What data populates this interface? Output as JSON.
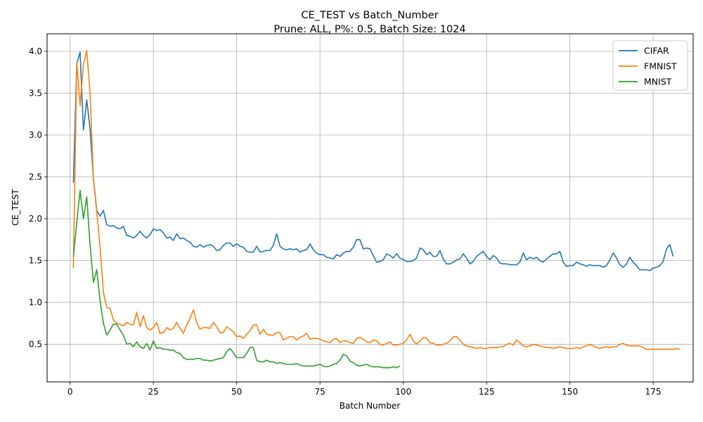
{
  "chart_data": {
    "type": "line",
    "title": "CE_TEST vs Batch_Number",
    "subtitle": "Prune: ALL, P%: 0.5, Batch Size: 1024",
    "xlabel": "Batch Number",
    "ylabel": "CE_TEST",
    "xlim": [
      -6.9,
      187
    ],
    "ylim": [
      0.05,
      4.21
    ],
    "xticks": [
      0,
      25,
      50,
      75,
      100,
      125,
      150,
      175
    ],
    "yticks": [
      0.5,
      1.0,
      1.5,
      2.0,
      2.5,
      3.0,
      3.5,
      4.0
    ],
    "ytick_labels": [
      "0.5",
      "1.0",
      "1.5",
      "2.0",
      "2.5",
      "3.0",
      "3.5",
      "4.0"
    ],
    "grid": true,
    "legend_position": "top-right",
    "series": [
      {
        "name": "CIFAR",
        "color": "#1f77b4",
        "values": [
          2.43,
          3.85,
          3.99,
          3.06,
          3.42,
          3.07,
          2.48,
          2.1,
          2.03,
          2.1,
          1.93,
          1.91,
          1.92,
          1.89,
          1.88,
          1.91,
          1.8,
          1.79,
          1.77,
          1.8,
          1.85,
          1.8,
          1.77,
          1.81,
          1.88,
          1.86,
          1.87,
          1.83,
          1.77,
          1.78,
          1.74,
          1.82,
          1.76,
          1.77,
          1.74,
          1.72,
          1.67,
          1.66,
          1.69,
          1.66,
          1.68,
          1.69,
          1.67,
          1.62,
          1.63,
          1.68,
          1.71,
          1.71,
          1.67,
          1.7,
          1.67,
          1.66,
          1.61,
          1.6,
          1.6,
          1.67,
          1.6,
          1.61,
          1.62,
          1.62,
          1.68,
          1.82,
          1.67,
          1.64,
          1.63,
          1.64,
          1.63,
          1.64,
          1.6,
          1.62,
          1.63,
          1.7,
          1.63,
          1.59,
          1.57,
          1.57,
          1.54,
          1.53,
          1.52,
          1.57,
          1.55,
          1.59,
          1.61,
          1.61,
          1.66,
          1.75,
          1.75,
          1.64,
          1.65,
          1.64,
          1.56,
          1.48,
          1.49,
          1.51,
          1.58,
          1.56,
          1.53,
          1.58,
          1.53,
          1.51,
          1.49,
          1.49,
          1.5,
          1.53,
          1.65,
          1.63,
          1.57,
          1.6,
          1.55,
          1.55,
          1.62,
          1.52,
          1.46,
          1.46,
          1.48,
          1.51,
          1.52,
          1.58,
          1.53,
          1.46,
          1.49,
          1.55,
          1.58,
          1.61,
          1.55,
          1.51,
          1.56,
          1.53,
          1.47,
          1.46,
          1.46,
          1.45,
          1.45,
          1.45,
          1.48,
          1.59,
          1.51,
          1.54,
          1.52,
          1.54,
          1.5,
          1.48,
          1.52,
          1.55,
          1.58,
          1.58,
          1.61,
          1.48,
          1.43,
          1.44,
          1.44,
          1.48,
          1.46,
          1.45,
          1.43,
          1.45,
          1.44,
          1.44,
          1.44,
          1.42,
          1.44,
          1.51,
          1.59,
          1.53,
          1.45,
          1.42,
          1.46,
          1.54,
          1.48,
          1.44,
          1.39,
          1.39,
          1.39,
          1.38,
          1.41,
          1.42,
          1.44,
          1.49,
          1.64,
          1.69,
          1.55
        ]
      },
      {
        "name": "FMNIST",
        "color": "#ff7f0e",
        "values": [
          1.41,
          3.87,
          3.35,
          3.85,
          4.01,
          3.5,
          2.46,
          2.09,
          1.66,
          1.12,
          0.94,
          0.93,
          0.79,
          0.75,
          0.74,
          0.72,
          0.76,
          0.74,
          0.73,
          0.88,
          0.71,
          0.84,
          0.7,
          0.67,
          0.7,
          0.76,
          0.63,
          0.64,
          0.7,
          0.67,
          0.69,
          0.76,
          0.69,
          0.63,
          0.73,
          0.81,
          0.91,
          0.76,
          0.68,
          0.7,
          0.7,
          0.69,
          0.76,
          0.71,
          0.64,
          0.64,
          0.71,
          0.68,
          0.65,
          0.59,
          0.6,
          0.57,
          0.62,
          0.66,
          0.73,
          0.73,
          0.62,
          0.68,
          0.62,
          0.61,
          0.61,
          0.64,
          0.64,
          0.55,
          0.57,
          0.59,
          0.59,
          0.55,
          0.58,
          0.6,
          0.63,
          0.56,
          0.57,
          0.57,
          0.56,
          0.54,
          0.53,
          0.52,
          0.56,
          0.57,
          0.52,
          0.54,
          0.54,
          0.52,
          0.51,
          0.57,
          0.58,
          0.56,
          0.53,
          0.52,
          0.55,
          0.54,
          0.5,
          0.49,
          0.51,
          0.53,
          0.49,
          0.49,
          0.5,
          0.51,
          0.55,
          0.62,
          0.54,
          0.5,
          0.54,
          0.58,
          0.57,
          0.52,
          0.51,
          0.49,
          0.49,
          0.5,
          0.51,
          0.54,
          0.59,
          0.59,
          0.55,
          0.5,
          0.48,
          0.47,
          0.46,
          0.45,
          0.46,
          0.45,
          0.45,
          0.46,
          0.46,
          0.46,
          0.47,
          0.47,
          0.5,
          0.51,
          0.49,
          0.55,
          0.52,
          0.48,
          0.47,
          0.48,
          0.5,
          0.49,
          0.48,
          0.47,
          0.46,
          0.46,
          0.45,
          0.46,
          0.47,
          0.46,
          0.45,
          0.45,
          0.45,
          0.46,
          0.45,
          0.47,
          0.48,
          0.5,
          0.48,
          0.46,
          0.45,
          0.46,
          0.47,
          0.46,
          0.47,
          0.47,
          0.5,
          0.51,
          0.49,
          0.48,
          0.48,
          0.48,
          0.48,
          0.46,
          0.44,
          0.44,
          0.44,
          0.44,
          0.44,
          0.44,
          0.44,
          0.44,
          0.44,
          0.45,
          0.44
        ]
      },
      {
        "name": "MNIST",
        "color": "#2ca02c",
        "values": [
          1.55,
          1.95,
          2.34,
          2.0,
          2.26,
          1.69,
          1.24,
          1.39,
          1.02,
          0.75,
          0.61,
          0.67,
          0.74,
          0.74,
          0.67,
          0.61,
          0.5,
          0.51,
          0.47,
          0.53,
          0.47,
          0.45,
          0.51,
          0.43,
          0.54,
          0.45,
          0.46,
          0.44,
          0.44,
          0.43,
          0.43,
          0.4,
          0.39,
          0.34,
          0.32,
          0.32,
          0.32,
          0.33,
          0.33,
          0.31,
          0.31,
          0.3,
          0.31,
          0.32,
          0.33,
          0.34,
          0.41,
          0.45,
          0.4,
          0.34,
          0.34,
          0.34,
          0.39,
          0.46,
          0.46,
          0.31,
          0.29,
          0.29,
          0.31,
          0.29,
          0.29,
          0.27,
          0.28,
          0.27,
          0.26,
          0.26,
          0.26,
          0.27,
          0.25,
          0.24,
          0.24,
          0.24,
          0.24,
          0.25,
          0.26,
          0.24,
          0.23,
          0.24,
          0.26,
          0.27,
          0.31,
          0.38,
          0.36,
          0.3,
          0.28,
          0.25,
          0.24,
          0.25,
          0.26,
          0.24,
          0.23,
          0.23,
          0.23,
          0.22,
          0.22,
          0.22,
          0.23,
          0.22,
          0.24
        ]
      }
    ]
  }
}
